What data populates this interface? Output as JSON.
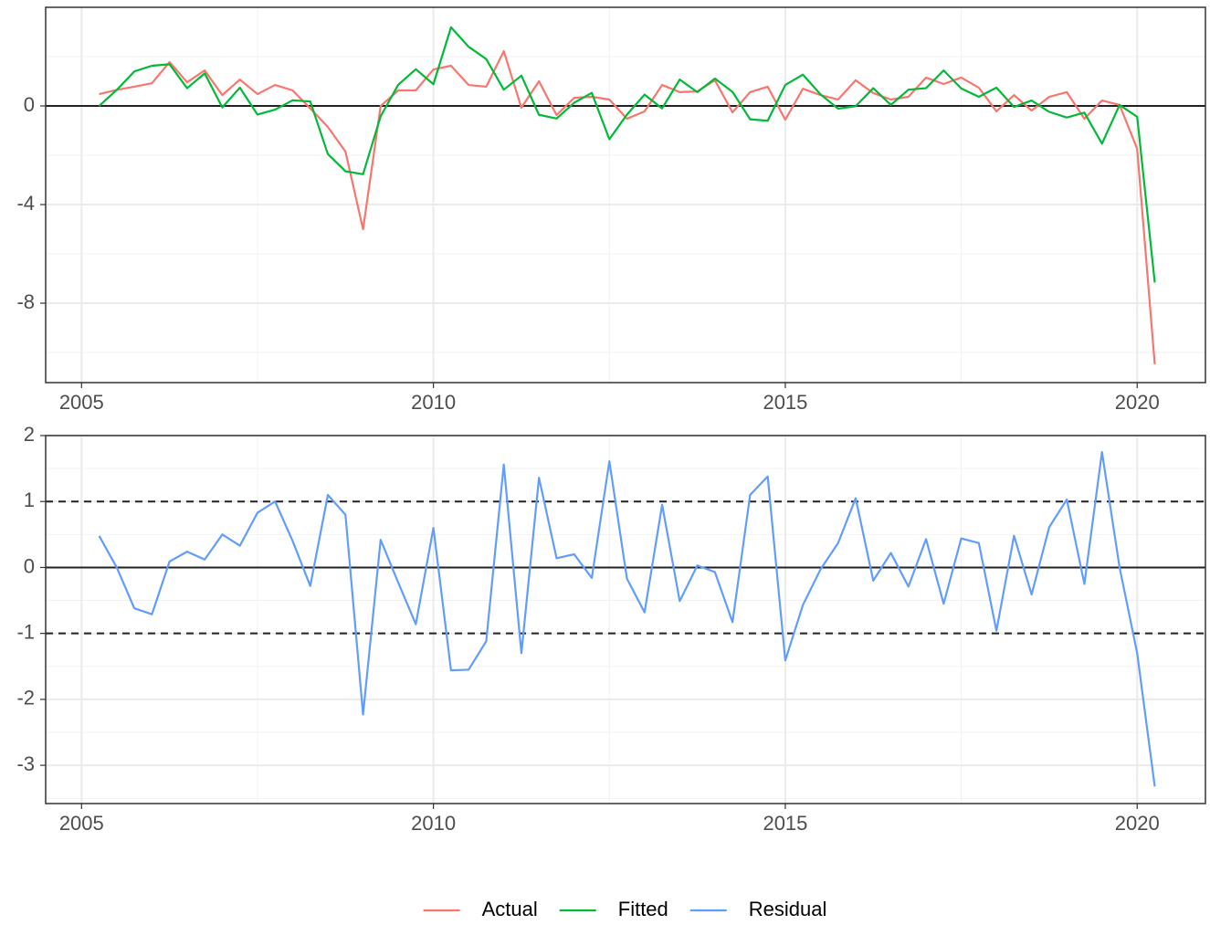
{
  "chart_data": [
    {
      "type": "line",
      "x": [
        2005.25,
        2005.5,
        2005.75,
        2006,
        2006.25,
        2006.5,
        2006.75,
        2007,
        2007.25,
        2007.5,
        2007.75,
        2008,
        2008.25,
        2008.5,
        2008.75,
        2009,
        2009.25,
        2009.5,
        2009.75,
        2010,
        2010.25,
        2010.5,
        2010.75,
        2011,
        2011.25,
        2011.5,
        2011.75,
        2012,
        2012.25,
        2012.5,
        2012.75,
        2013,
        2013.25,
        2013.5,
        2013.75,
        2014,
        2014.25,
        2014.5,
        2014.75,
        2015,
        2015.25,
        2015.5,
        2015.75,
        2016,
        2016.25,
        2016.5,
        2016.75,
        2017,
        2017.25,
        2017.5,
        2017.75,
        2018,
        2018.25,
        2018.5,
        2018.75,
        2019,
        2019.25,
        2019.5,
        2019.75,
        2020,
        2020.25
      ],
      "series": [
        {
          "name": "Actual",
          "color": "#F8766D",
          "values": [
            0.48,
            0.65,
            0.78,
            0.92,
            1.78,
            0.96,
            1.44,
            0.44,
            1.07,
            0.48,
            0.85,
            0.63,
            -0.1,
            -0.85,
            -1.85,
            -5.0,
            0.0,
            0.63,
            0.63,
            1.48,
            1.63,
            0.85,
            0.78,
            2.22,
            -0.07,
            1.0,
            -0.37,
            0.33,
            0.37,
            0.26,
            -0.52,
            -0.22,
            0.85,
            0.56,
            0.59,
            1.04,
            -0.26,
            0.56,
            0.78,
            -0.56,
            0.7,
            0.44,
            0.26,
            1.04,
            0.52,
            0.26,
            0.37,
            1.15,
            0.89,
            1.15,
            0.74,
            -0.22,
            0.44,
            -0.19,
            0.37,
            0.56,
            -0.52,
            0.22,
            0.04,
            -1.74,
            -10.48
          ]
        },
        {
          "name": "Fitted",
          "color": "#00BA38",
          "values": [
            0.0,
            0.65,
            1.4,
            1.63,
            1.69,
            0.72,
            1.32,
            -0.06,
            0.74,
            -0.35,
            -0.15,
            0.23,
            0.18,
            -1.95,
            -2.65,
            -2.77,
            -0.42,
            0.86,
            1.49,
            0.88,
            3.19,
            2.4,
            1.9,
            0.66,
            1.23,
            -0.36,
            -0.51,
            0.13,
            0.53,
            -1.35,
            -0.35,
            0.46,
            -0.1,
            1.07,
            0.56,
            1.11,
            0.57,
            -0.54,
            -0.6,
            0.85,
            1.27,
            0.47,
            -0.11,
            -0.01,
            0.72,
            0.04,
            0.66,
            0.72,
            1.44,
            0.71,
            0.37,
            0.74,
            -0.04,
            0.22,
            -0.24,
            -0.47,
            -0.27,
            -1.53,
            0.04,
            -0.44,
            -7.16
          ]
        }
      ],
      "xlim": [
        2004.49,
        2020.97
      ],
      "xticks": [
        2005,
        2010,
        2015,
        2020
      ],
      "ylim": [
        -11.22,
        4.0
      ],
      "yticks": [
        -8,
        -4,
        0
      ],
      "hlines": [
        {
          "value": 0,
          "style": "solid"
        }
      ],
      "grid": true,
      "minor_grid": true
    },
    {
      "type": "line",
      "x": [
        2005.25,
        2005.5,
        2005.75,
        2006,
        2006.25,
        2006.5,
        2006.75,
        2007,
        2007.25,
        2007.5,
        2007.75,
        2008,
        2008.25,
        2008.5,
        2008.75,
        2009,
        2009.25,
        2009.5,
        2009.75,
        2010,
        2010.25,
        2010.5,
        2010.75,
        2011,
        2011.25,
        2011.5,
        2011.75,
        2012,
        2012.25,
        2012.5,
        2012.75,
        2013,
        2013.25,
        2013.5,
        2013.75,
        2014,
        2014.25,
        2014.5,
        2014.75,
        2015,
        2015.25,
        2015.5,
        2015.75,
        2016,
        2016.25,
        2016.5,
        2016.75,
        2017,
        2017.25,
        2017.5,
        2017.75,
        2018,
        2018.25,
        2018.5,
        2018.75,
        2019,
        2019.25,
        2019.5,
        2019.75,
        2020,
        2020.25
      ],
      "series": [
        {
          "name": "Residual",
          "color": "#619CFF",
          "values": [
            0.48,
            0.0,
            -0.62,
            -0.71,
            0.09,
            0.24,
            0.12,
            0.5,
            0.33,
            0.83,
            1.0,
            0.4,
            -0.28,
            1.1,
            0.8,
            -2.23,
            0.42,
            -0.23,
            -0.86,
            0.6,
            -1.56,
            -1.55,
            -1.12,
            1.56,
            -1.3,
            1.36,
            0.14,
            0.2,
            -0.16,
            1.61,
            -0.17,
            -0.68,
            0.95,
            -0.51,
            0.03,
            -0.07,
            -0.83,
            1.1,
            1.38,
            -1.41,
            -0.57,
            -0.03,
            0.37,
            1.05,
            -0.2,
            0.22,
            -0.29,
            0.43,
            -0.55,
            0.44,
            0.37,
            -0.96,
            0.48,
            -0.41,
            0.61,
            1.03,
            -0.25,
            1.75,
            0.0,
            -1.3,
            -3.32
          ]
        }
      ],
      "xlim": [
        2004.49,
        2020.97
      ],
      "xticks": [
        2005,
        2010,
        2015,
        2020
      ],
      "ylim": [
        -3.58,
        2.0
      ],
      "yticks": [
        -3,
        -2,
        -1,
        0,
        1,
        2
      ],
      "hlines": [
        {
          "value": 0,
          "style": "solid"
        },
        {
          "value": 1,
          "style": "dashed"
        },
        {
          "value": -1,
          "style": "dashed"
        }
      ],
      "grid": true,
      "minor_grid": true
    }
  ]
}
